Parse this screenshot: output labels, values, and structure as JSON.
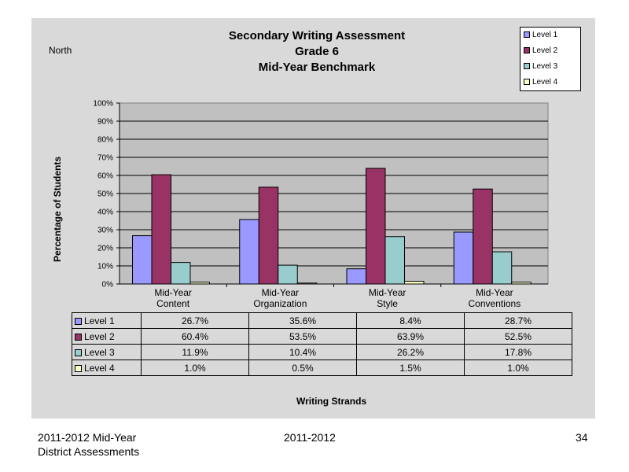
{
  "region_label": "North",
  "title_lines": [
    "Secondary Writing Assessment",
    "Grade 6",
    "Mid-Year Benchmark"
  ],
  "colors": {
    "Level 1": "#9999ff",
    "Level 2": "#993366",
    "Level 3": "#99cccc",
    "Level 4": "#ffffcc"
  },
  "chart_data": {
    "type": "bar",
    "title": "Secondary Writing Assessment Grade 6 Mid-Year Benchmark",
    "categories": [
      [
        "Mid-Year",
        "Content"
      ],
      [
        "Mid-Year",
        "Organization"
      ],
      [
        "Mid-Year",
        "Style"
      ],
      [
        "Mid-Year",
        "Conventions"
      ]
    ],
    "series": [
      {
        "name": "Level 1",
        "values": [
          26.7,
          35.6,
          8.4,
          28.7
        ]
      },
      {
        "name": "Level 2",
        "values": [
          60.4,
          53.5,
          63.9,
          52.5
        ]
      },
      {
        "name": "Level 3",
        "values": [
          11.9,
          10.4,
          26.2,
          17.8
        ]
      },
      {
        "name": "Level 4",
        "values": [
          1.0,
          0.5,
          1.5,
          1.0
        ]
      }
    ],
    "ylabel": "Percentage of Students",
    "xlabel": "Writing Strands",
    "ylim": [
      0,
      100
    ],
    "yticks": [
      "0%",
      "10%",
      "20%",
      "30%",
      "40%",
      "50%",
      "60%",
      "70%",
      "80%",
      "90%",
      "100%"
    ],
    "grid": true,
    "legend_position": "top-right",
    "data_table": [
      {
        "series": "Level 1",
        "cells": [
          "26.7%",
          "35.6%",
          "8.4%",
          "28.7%"
        ]
      },
      {
        "series": "Level 2",
        "cells": [
          "60.4%",
          "53.5%",
          "63.9%",
          "52.5%"
        ]
      },
      {
        "series": "Level 3",
        "cells": [
          "11.9%",
          "10.4%",
          "26.2%",
          "17.8%"
        ]
      },
      {
        "series": "Level 4",
        "cells": [
          "1.0%",
          "0.5%",
          "1.5%",
          "1.0%"
        ]
      }
    ]
  },
  "footer": {
    "left_line1": "2011-2012  Mid-Year",
    "left_line2": "District Assessments",
    "center": "2011-2012",
    "page_number": "34"
  }
}
